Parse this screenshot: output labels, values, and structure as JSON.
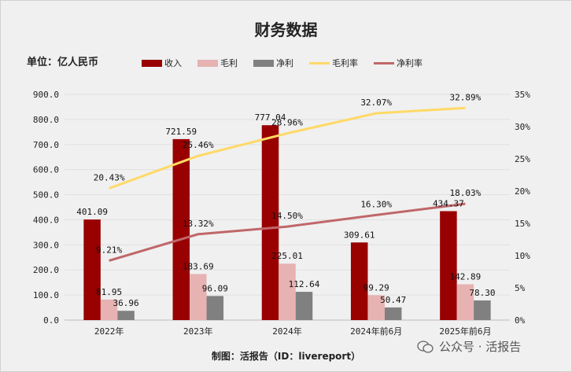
{
  "title": "财务数据",
  "unit": "单位：亿人民币",
  "footer": "制图：活报告（ID：livereport）",
  "watermark": "公众号 · 活报告",
  "chart_data": {
    "type": "bar+line",
    "categories": [
      "2022年",
      "2023年",
      "2024年",
      "2024年前6月",
      "2025年前6月"
    ],
    "series": [
      {
        "name": "收入",
        "type": "bar",
        "axis": "left",
        "color": "#990000",
        "values": [
          401.09,
          721.59,
          777.04,
          309.61,
          434.37
        ],
        "labels": [
          "401.09",
          "721.59",
          "777.04",
          "309.61",
          "434.37"
        ]
      },
      {
        "name": "毛利",
        "type": "bar",
        "axis": "left",
        "color": "#e6b2b2",
        "values": [
          81.95,
          183.69,
          225.01,
          99.29,
          142.89
        ],
        "labels": [
          "81.95",
          "183.69",
          "225.01",
          "99.29",
          "142.89"
        ]
      },
      {
        "name": "净利",
        "type": "bar",
        "axis": "left",
        "color": "#808080",
        "values": [
          36.96,
          96.09,
          112.64,
          50.47,
          78.3
        ],
        "labels": [
          "36.96",
          "96.09",
          "112.64",
          "50.47",
          "78.30"
        ]
      },
      {
        "name": "毛利率",
        "type": "line",
        "axis": "right",
        "color": "#ffd966",
        "values": [
          20.43,
          25.46,
          28.96,
          32.07,
          32.89
        ],
        "labels": [
          "20.43%",
          "25.46%",
          "28.96%",
          "32.07%",
          "32.89%"
        ]
      },
      {
        "name": "净利率",
        "type": "line",
        "axis": "right",
        "color": "#c0676a",
        "values": [
          9.21,
          13.32,
          14.5,
          16.3,
          18.03
        ],
        "labels": [
          "9.21%",
          "13.32%",
          "14.50%",
          "16.30%",
          "18.03%"
        ]
      }
    ],
    "left_axis": {
      "range": [
        0,
        900
      ],
      "ticks": [
        "0.0",
        "100.0",
        "200.0",
        "300.0",
        "400.0",
        "500.0",
        "600.0",
        "700.0",
        "800.0",
        "900.0"
      ]
    },
    "right_axis": {
      "range": [
        0,
        35
      ],
      "ticks": [
        "0%",
        "5%",
        "10%",
        "15%",
        "20%",
        "25%",
        "30%",
        "35%"
      ]
    },
    "grid": true,
    "legend": "top"
  }
}
